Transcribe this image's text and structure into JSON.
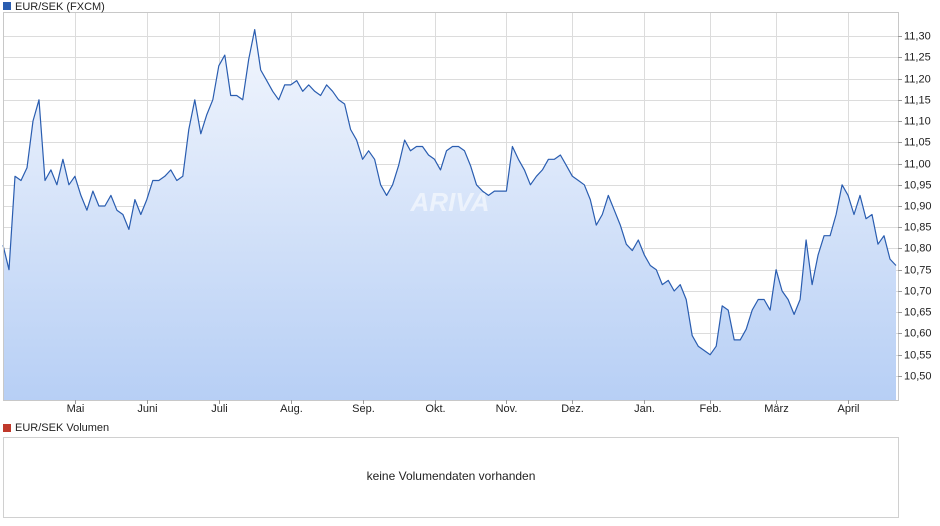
{
  "chart_data": [
    {
      "type": "line",
      "watermark": "ARIVA",
      "series": [
        {
          "name": "EUR/SEK (FXCM)",
          "color": "#2a5db0",
          "values": [
            10.808,
            10.75,
            10.97,
            10.96,
            10.99,
            11.1,
            11.15,
            10.96,
            10.985,
            10.95,
            11.01,
            10.95,
            10.97,
            10.925,
            10.89,
            10.935,
            10.9,
            10.9,
            10.925,
            10.89,
            10.88,
            10.845,
            10.915,
            10.88,
            10.915,
            10.96,
            10.96,
            10.97,
            10.985,
            10.96,
            10.97,
            11.08,
            11.15,
            11.07,
            11.115,
            11.15,
            11.23,
            11.255,
            11.16,
            11.16,
            11.15,
            11.245,
            11.315,
            11.22,
            11.195,
            11.17,
            11.15,
            11.185,
            11.185,
            11.195,
            11.17,
            11.185,
            11.17,
            11.16,
            11.185,
            11.17,
            11.15,
            11.14,
            11.08,
            11.055,
            11.01,
            11.03,
            11.01,
            10.95,
            10.925,
            10.95,
            10.995,
            11.055,
            11.03,
            11.04,
            11.04,
            11.02,
            11.01,
            10.985,
            11.03,
            11.04,
            11.04,
            11.03,
            10.995,
            10.95,
            10.935,
            10.925,
            10.935,
            10.935,
            10.935,
            11.04,
            11.01,
            10.985,
            10.95,
            10.97,
            10.985,
            11.01,
            11.01,
            11.02,
            10.995,
            10.97,
            10.96,
            10.95,
            10.915,
            10.855,
            10.88,
            10.925,
            10.89,
            10.855,
            10.81,
            10.795,
            10.82,
            10.785,
            10.76,
            10.75,
            10.715,
            10.725,
            10.7,
            10.715,
            10.68,
            10.595,
            10.57,
            10.56,
            10.55,
            10.57,
            10.665,
            10.655,
            10.585,
            10.585,
            10.61,
            10.655,
            10.68,
            10.68,
            10.655,
            10.75,
            10.7,
            10.68,
            10.645,
            10.68,
            10.82,
            10.715,
            10.785,
            10.83,
            10.83,
            10.88,
            10.95,
            10.925,
            10.88,
            10.925,
            10.87,
            10.88,
            10.81,
            10.83,
            10.775,
            10.76
          ]
        }
      ],
      "xlim": [
        0,
        149
      ],
      "xticks": [
        {
          "value": 12,
          "label": "Mai"
        },
        {
          "value": 24,
          "label": "Juni"
        },
        {
          "value": 36,
          "label": "Juli"
        },
        {
          "value": 48,
          "label": "Aug."
        },
        {
          "value": 60,
          "label": "Sep."
        },
        {
          "value": 72,
          "label": "Okt."
        },
        {
          "value": 84,
          "label": "Nov."
        },
        {
          "value": 95,
          "label": "Dez."
        },
        {
          "value": 107,
          "label": "Jan."
        },
        {
          "value": 118,
          "label": "Feb."
        },
        {
          "value": 129,
          "label": "März"
        },
        {
          "value": 141,
          "label": "April"
        }
      ],
      "ylim": [
        10.4435,
        11.3565
      ],
      "yticks": [
        {
          "value": 10.5,
          "label": "10,50"
        },
        {
          "value": 10.55,
          "label": "10,55"
        },
        {
          "value": 10.6,
          "label": "10,60"
        },
        {
          "value": 10.65,
          "label": "10,65"
        },
        {
          "value": 10.7,
          "label": "10,70"
        },
        {
          "value": 10.75,
          "label": "10,75"
        },
        {
          "value": 10.8,
          "label": "10,80"
        },
        {
          "value": 10.85,
          "label": "10,85"
        },
        {
          "value": 10.9,
          "label": "10,90"
        },
        {
          "value": 10.95,
          "label": "10,95"
        },
        {
          "value": 11.0,
          "label": "11,00"
        },
        {
          "value": 11.05,
          "label": "11,05"
        },
        {
          "value": 11.1,
          "label": "11,10"
        },
        {
          "value": 11.15,
          "label": "11,15"
        },
        {
          "value": 11.2,
          "label": "11,20"
        },
        {
          "value": 11.25,
          "label": "11,25"
        },
        {
          "value": 11.3,
          "label": "11,30"
        }
      ],
      "grid": true
    },
    {
      "type": "empty",
      "title": "EUR/SEK Volumen",
      "color": "#c0392b",
      "annotation": "keine Volumendaten vorhanden"
    }
  ]
}
